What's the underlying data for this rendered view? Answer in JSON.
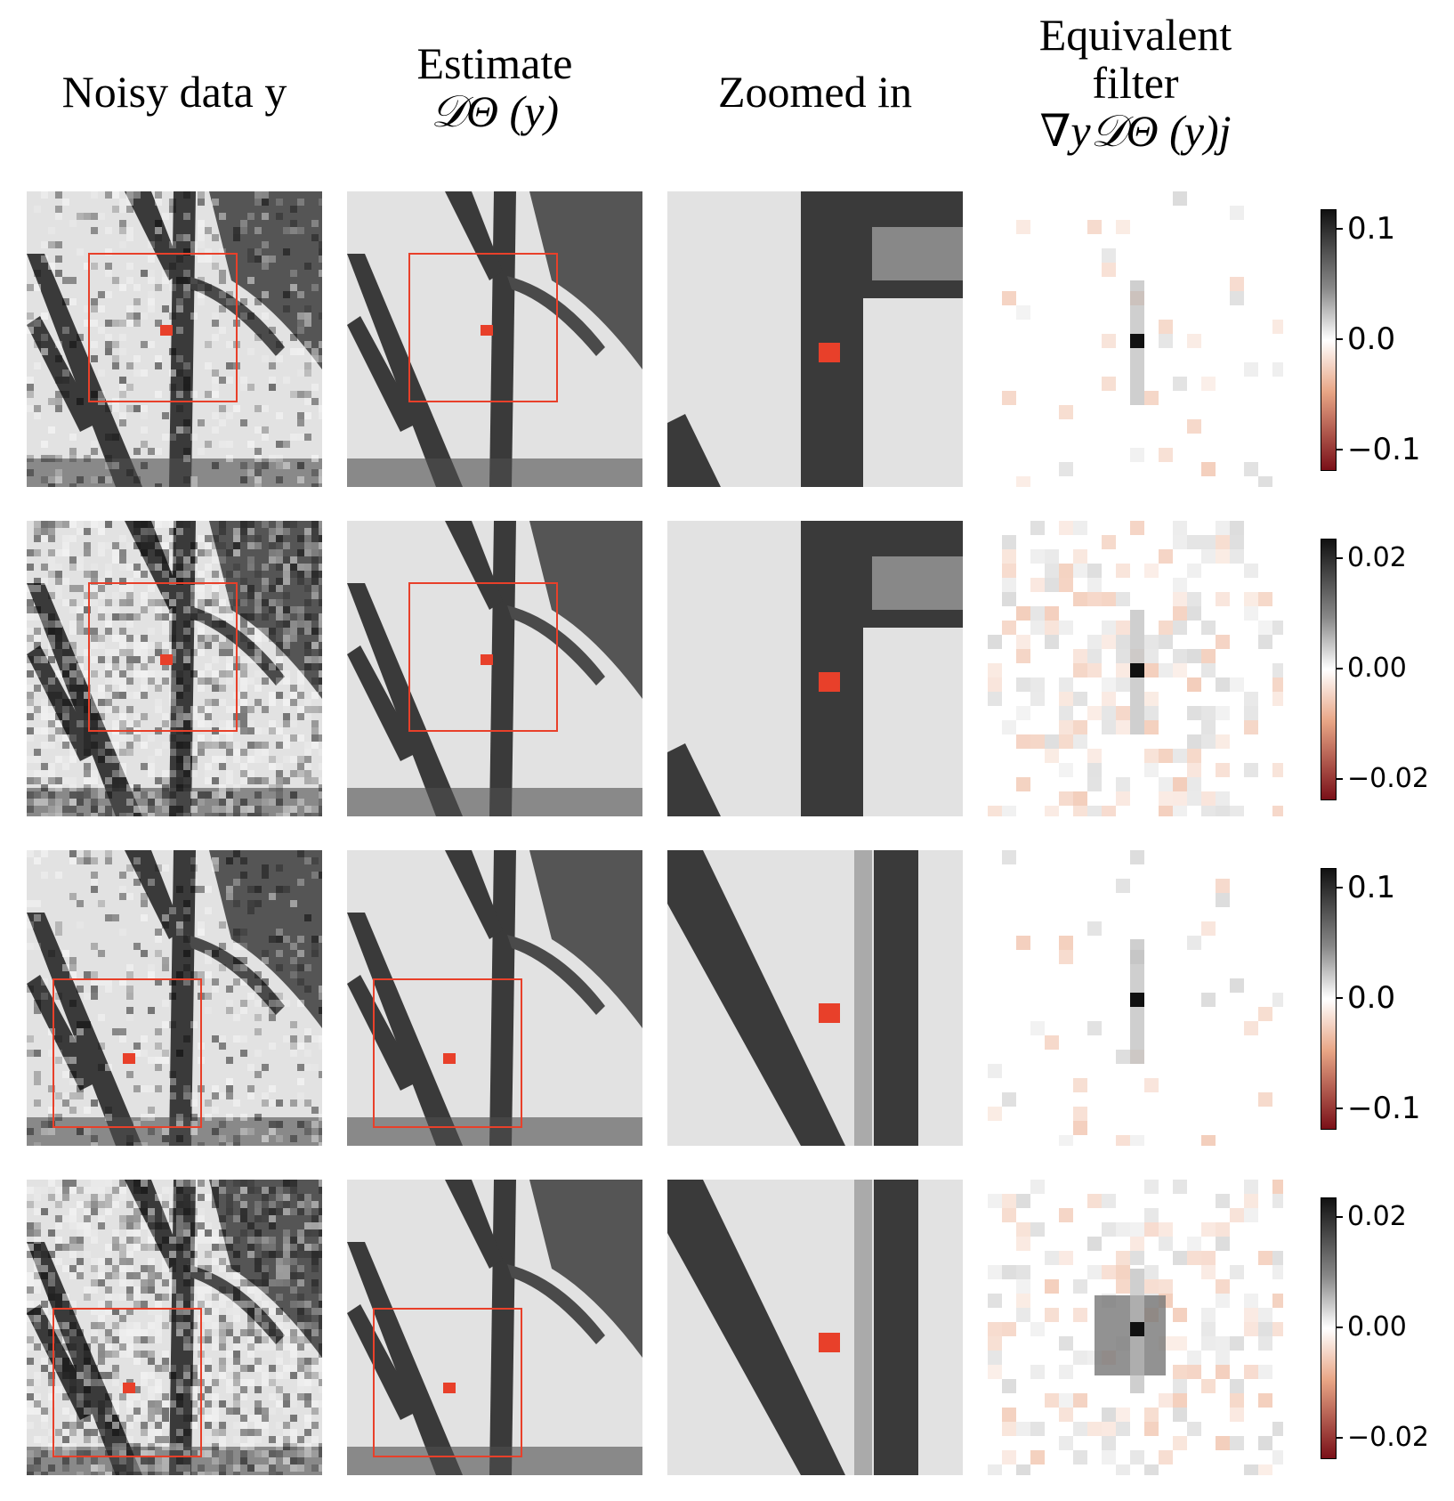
{
  "columns": {
    "noisy": {
      "line1": "Noisy data y"
    },
    "estimate": {
      "line1": "Estimate",
      "line2": "𝒟Θ (y)"
    },
    "zoom": {
      "line1": "Zoomed in"
    },
    "filter": {
      "line1": "Equivalent",
      "line2": "filter",
      "line3": "∇y𝒟Θ (y)j"
    }
  },
  "rows": [
    {
      "colorbar": {
        "ticks": [
          "0.1",
          "0.0",
          "−0.1"
        ],
        "range": [
          -0.12,
          0.12
        ]
      },
      "noise": "low",
      "pixel_location": "vessel"
    },
    {
      "colorbar": {
        "ticks": [
          "0.02",
          "0.00",
          "−0.02"
        ],
        "range": [
          -0.028,
          0.028
        ]
      },
      "noise": "high",
      "pixel_location": "vessel"
    },
    {
      "colorbar": {
        "ticks": [
          "0.1",
          "0.0",
          "−0.1"
        ],
        "range": [
          -0.12,
          0.12
        ]
      },
      "noise": "low",
      "pixel_location": "background"
    },
    {
      "colorbar": {
        "ticks": [
          "0.02",
          "0.00",
          "−0.02"
        ],
        "range": [
          -0.028,
          0.028
        ]
      },
      "noise": "high",
      "pixel_location": "background"
    }
  ],
  "colors": {
    "marker": "#e8402a",
    "box": "#e8402a",
    "vessel": "#3a3a3a",
    "background": "#e2e2e2"
  }
}
